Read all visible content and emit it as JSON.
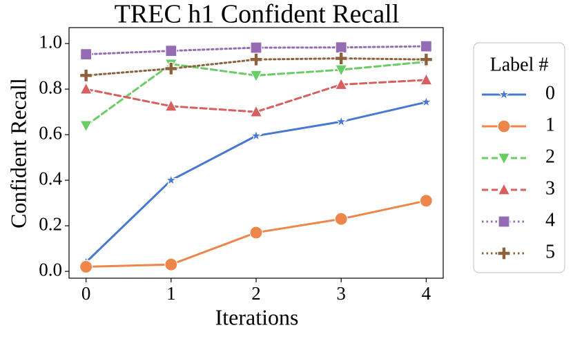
{
  "chart_data": {
    "type": "line",
    "title": "TREC h1 Confident Recall",
    "xlabel": "Iterations",
    "ylabel": "Confident Recall",
    "x": [
      0,
      1,
      2,
      3,
      4
    ],
    "xlim": [
      -0.2,
      4.2
    ],
    "xticks": [
      0,
      1,
      2,
      3,
      4
    ],
    "ylim": [
      -0.03,
      1.07
    ],
    "yticks": [
      {
        "value": 0,
        "label": "0.0"
      },
      0.2,
      0.4,
      0.6,
      0.8,
      {
        "value": 1,
        "label": "1.0"
      }
    ],
    "legend_title": "Label #",
    "legend_position": "outside-right",
    "grid": false,
    "series": [
      {
        "name": "0",
        "color": "#4878d0",
        "linestyle": "solid",
        "marker": "star",
        "values": [
          0.04,
          0.4,
          0.595,
          0.657,
          0.743
        ]
      },
      {
        "name": "1",
        "color": "#ee854a",
        "linestyle": "solid",
        "marker": "circle",
        "values": [
          0.02,
          0.03,
          0.17,
          0.23,
          0.31
        ]
      },
      {
        "name": "2",
        "color": "#6acc64",
        "linestyle": "dashed",
        "marker": "triangle-down",
        "values": [
          0.64,
          0.91,
          0.86,
          0.885,
          0.92
        ]
      },
      {
        "name": "3",
        "color": "#d65f5f",
        "linestyle": "dashed",
        "marker": "triangle-up",
        "values": [
          0.8,
          0.725,
          0.7,
          0.82,
          0.84
        ]
      },
      {
        "name": "4",
        "color": "#956cb4",
        "linestyle": "dotted",
        "marker": "square",
        "values": [
          0.953,
          0.968,
          0.982,
          0.983,
          0.988
        ]
      },
      {
        "name": "5",
        "color": "#8c613c",
        "linestyle": "dotted",
        "marker": "plus",
        "values": [
          0.86,
          0.89,
          0.93,
          0.935,
          0.93
        ]
      }
    ]
  }
}
